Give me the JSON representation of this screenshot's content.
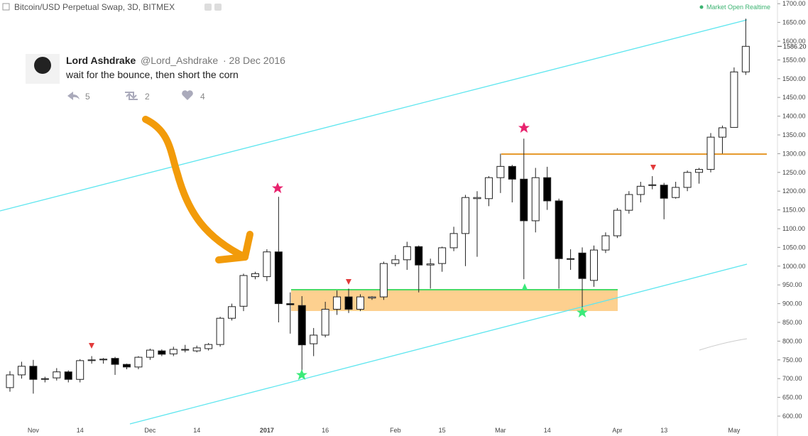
{
  "header": {
    "title": "Bitcoin/USD Perpetual Swap, 3D, BITMEX",
    "status": "Market Open Realtime"
  },
  "tweet": {
    "author": "Lord Ashdrake",
    "handle": "@Lord_Ashdrake",
    "date": "· 28 Dec 2016",
    "text": "wait for the bounce, then short the corn",
    "replies": 5,
    "retweets": 2,
    "likes": 4
  },
  "chart_data": {
    "type": "candlestick",
    "categories": [
      null,
      null,
      "Nov",
      null,
      null,
      null,
      "14",
      null,
      null,
      null,
      null,
      null,
      "Dec",
      null,
      null,
      null,
      "14",
      null,
      null,
      null,
      null,
      null,
      "2017",
      null,
      null,
      null,
      null,
      "16",
      null,
      null,
      null,
      null,
      null,
      "Feb",
      null,
      null,
      null,
      "15",
      null,
      null,
      null,
      null,
      "Mar",
      null,
      null,
      null,
      "14",
      null,
      null,
      null,
      null,
      null,
      "Apr",
      null,
      null,
      null,
      "13",
      null,
      null,
      null,
      null,
      null,
      "May",
      null
    ],
    "open": [
      676,
      710,
      733,
      698,
      702,
      718,
      698,
      748,
      750,
      754,
      738,
      731,
      757,
      774,
      766,
      776,
      774,
      780,
      791,
      861,
      893,
      972,
      972,
      1038,
      900,
      895,
      793,
      816,
      885,
      918,
      885,
      915,
      918,
      1007,
      1017,
      1052,
      1003,
      1007,
      1049,
      1087,
      1180,
      1180,
      1236,
      1266,
      1232,
      1121,
      1236,
      1174,
      1020,
      1035,
      962,
      1043,
      1081,
      1149,
      1191,
      1215,
      1216,
      1183,
      1210,
      1250,
      1258,
      1344,
      1370,
      1518
    ],
    "high": [
      720,
      745,
      750,
      705,
      728,
      722,
      752,
      760,
      755,
      758,
      740,
      760,
      780,
      778,
      785,
      790,
      788,
      795,
      865,
      900,
      980,
      985,
      1045,
      1185,
      930,
      920,
      835,
      905,
      935,
      940,
      925,
      920,
      1012,
      1030,
      1065,
      1055,
      1020,
      1052,
      1105,
      1190,
      1200,
      1240,
      1300,
      1270,
      1340,
      1262,
      1265,
      1180,
      1045,
      1050,
      1055,
      1090,
      1155,
      1200,
      1225,
      1240,
      1222,
      1225,
      1255,
      1262,
      1355,
      1375,
      1530,
      1660
    ],
    "low": [
      665,
      700,
      660,
      690,
      695,
      690,
      690,
      740,
      740,
      710,
      725,
      725,
      750,
      760,
      760,
      770,
      770,
      775,
      785,
      855,
      880,
      965,
      960,
      850,
      820,
      710,
      760,
      810,
      870,
      875,
      880,
      910,
      910,
      1000,
      990,
      930,
      940,
      985,
      1040,
      1000,
      1025,
      1160,
      1195,
      1170,
      965,
      1090,
      1150,
      940,
      990,
      890,
      945,
      1035,
      1075,
      1140,
      1170,
      1205,
      1125,
      1180,
      1200,
      1220,
      1250,
      1300,
      1370,
      1510
    ],
    "close": [
      710,
      733,
      698,
      700,
      718,
      698,
      748,
      750,
      752,
      738,
      731,
      757,
      776,
      765,
      778,
      778,
      782,
      791,
      861,
      892,
      975,
      980,
      1038,
      900,
      897,
      790,
      816,
      885,
      918,
      885,
      918,
      918,
      1007,
      1017,
      1052,
      1003,
      1006,
      1049,
      1087,
      1183,
      1183,
      1236,
      1266,
      1232,
      1121,
      1236,
      1174,
      1020,
      1018,
      967,
      1043,
      1081,
      1149,
      1191,
      1213,
      1217,
      1181,
      1210,
      1250,
      1258,
      1344,
      1369,
      1518,
      1586.2
    ],
    "up_color": "#ffffff",
    "down_color": "#000000",
    "ylim": [
      573.5,
      1709.8
    ],
    "yticks": [
      {
        "value": 600,
        "label": "600.00"
      },
      {
        "value": 650,
        "label": "650.00"
      },
      {
        "value": 700,
        "label": "700.00"
      },
      {
        "value": 750,
        "label": "750.00"
      },
      {
        "value": 800,
        "label": "800.00"
      },
      {
        "value": 850,
        "label": "850.00"
      },
      {
        "value": 900,
        "label": "900.00"
      },
      {
        "value": 950,
        "label": "950.00"
      },
      {
        "value": 1000,
        "label": "1000.00"
      },
      {
        "value": 1050,
        "label": "1050.00"
      },
      {
        "value": 1100,
        "label": "1100.00"
      },
      {
        "value": 1150,
        "label": "1150.00"
      },
      {
        "value": 1200,
        "label": "1200.00"
      },
      {
        "value": 1250,
        "label": "1250.00"
      },
      {
        "value": 1300,
        "label": "1300.00"
      },
      {
        "value": 1350,
        "label": "1350.00"
      },
      {
        "value": 1400,
        "label": "1400.00"
      },
      {
        "value": 1450,
        "label": "1450.00"
      },
      {
        "value": 1500,
        "label": "1500.00"
      },
      {
        "value": 1550,
        "label": "1550.00"
      },
      {
        "value": 1600,
        "label": "1600.00"
      },
      {
        "value": 1650,
        "label": "1650.00"
      },
      {
        "value": 1700,
        "label": "1700.00"
      }
    ],
    "last_price": {
      "value": 1586.2,
      "label": "1586.20"
    }
  }
}
